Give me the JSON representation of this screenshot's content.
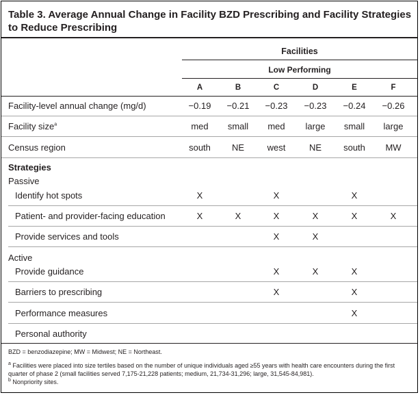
{
  "title": "Table 3. Average Annual Change in Facility BZD Prescribing and Facility Strategies to Reduce Prescribing",
  "header": {
    "group": "Facilities",
    "subgroup": "Low Performing",
    "columns": [
      "A",
      "B",
      "C",
      "D",
      "E",
      "F"
    ]
  },
  "rows": [
    {
      "label": "Facility-level annual change (mg/d)",
      "values": [
        "−0.19",
        "−0.21",
        "−0.23",
        "−0.23",
        "−0.24",
        "−0.26"
      ]
    },
    {
      "label": "Facility size",
      "sup": "a",
      "values": [
        "med",
        "small",
        "med",
        "large",
        "small",
        "large"
      ]
    },
    {
      "label": "Census region",
      "values": [
        "south",
        "NE",
        "west",
        "NE",
        "south",
        "MW"
      ]
    }
  ],
  "strategies_heading": "Strategies",
  "passive_heading": "Passive",
  "passive": [
    {
      "label": "Identify hot spots",
      "values": [
        "X",
        "",
        "X",
        "",
        "X",
        ""
      ]
    },
    {
      "label": "Patient- and provider-facing education",
      "values": [
        "X",
        "X",
        "X",
        "X",
        "X",
        "X"
      ]
    },
    {
      "label": "Provide services and tools",
      "values": [
        "",
        "",
        "X",
        "X",
        "",
        ""
      ]
    }
  ],
  "active_heading": "Active",
  "active": [
    {
      "label": "Provide guidance",
      "values": [
        "",
        "",
        "X",
        "X",
        "X",
        ""
      ]
    },
    {
      "label": "Barriers to prescribing",
      "values": [
        "",
        "",
        "X",
        "",
        "X",
        ""
      ]
    },
    {
      "label": "Performance measures",
      "values": [
        "",
        "",
        "",
        "",
        "X",
        ""
      ]
    },
    {
      "label": "Personal authority",
      "values": [
        "",
        "",
        "",
        "",
        "",
        ""
      ]
    }
  ],
  "footnotes": {
    "abbrev": "BZD = benzodiazepine; MW = Midwest; NE = Northeast.",
    "a_mark": "a",
    "a_text": " Facilities were placed into size tertiles based on the number of unique individuals aged ≥55 years with health care encounters during the first quarter of phase 2 (small facilities served 7,175-21,228 patients; medium, 21,734-31,296; large, 31,545-84,981).",
    "b_mark": "b",
    "b_text": " Nonpriority sites."
  }
}
